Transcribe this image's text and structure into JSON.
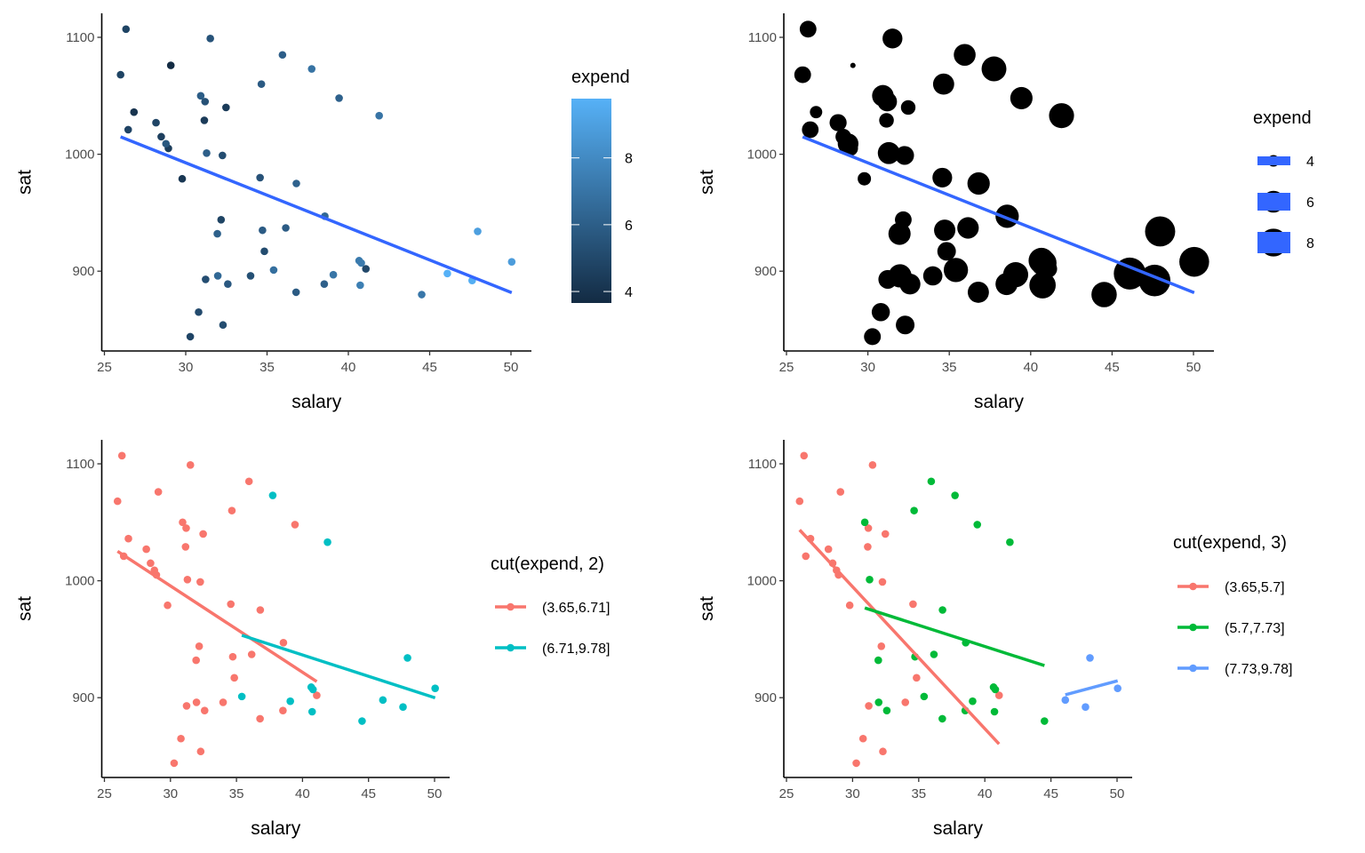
{
  "chart_data": [
    {
      "type": "scatter",
      "xlabel": "salary",
      "ylabel": "sat",
      "xticks": [
        25,
        30,
        35,
        40,
        45,
        50
      ],
      "yticks": [
        900,
        1000,
        1100
      ],
      "color_by": "expend",
      "legend": {
        "title": "expend",
        "type": "colorbar",
        "ticks": [
          4,
          6,
          8
        ],
        "low_color": "#132B43",
        "high_color": "#56B1F7"
      },
      "fit": "linear",
      "fit_color": "#3366FF",
      "legend_placement": "right"
    },
    {
      "type": "scatter",
      "xlabel": "salary",
      "ylabel": "sat",
      "xticks": [
        25,
        30,
        35,
        40,
        45,
        50
      ],
      "yticks": [
        900,
        1000,
        1100
      ],
      "size_by": "expend",
      "legend": {
        "title": "expend",
        "type": "size",
        "ticks": [
          4,
          6,
          8
        ]
      },
      "point_color": "#000000",
      "fit": "linear",
      "fit_color": "#3366FF",
      "legend_placement": "right"
    },
    {
      "type": "scatter",
      "xlabel": "salary",
      "ylabel": "sat",
      "xticks": [
        25,
        30,
        35,
        40,
        45,
        50
      ],
      "yticks": [
        900,
        1000,
        1100
      ],
      "color_by": "cut(expend, 2)",
      "breaks": [
        3.65,
        6.71,
        9.78
      ],
      "legend": {
        "title": "cut(expend, 2)",
        "type": "groups",
        "entries": [
          "(3.65,6.71]",
          "(6.71,9.78]"
        ],
        "colors": [
          "#F8766D",
          "#00BFC4"
        ]
      },
      "fit": "linear per group",
      "legend_placement": "right"
    },
    {
      "type": "scatter",
      "xlabel": "salary",
      "ylabel": "sat",
      "xticks": [
        25,
        30,
        35,
        40,
        45,
        50
      ],
      "yticks": [
        900,
        1000,
        1100
      ],
      "color_by": "cut(expend, 3)",
      "breaks": [
        3.65,
        5.7,
        7.73,
        9.78
      ],
      "legend": {
        "title": "cut(expend, 3)",
        "type": "groups",
        "entries": [
          "(3.65,5.7]",
          "(5.7,7.73]",
          "(7.73,9.78]"
        ],
        "colors": [
          "#F8766D",
          "#00BA38",
          "#619CFF"
        ]
      },
      "fit": "linear per group",
      "legend_placement": "right"
    }
  ],
  "points_columns": [
    "salary",
    "sat",
    "expend"
  ],
  "points": [
    [
      31.144,
      1029,
      4.405
    ],
    [
      47.951,
      934,
      8.963
    ],
    [
      32.175,
      944,
      4.778
    ],
    [
      28.934,
      1005,
      4.459
    ],
    [
      41.078,
      902,
      4.992
    ],
    [
      34.571,
      980,
      5.443
    ],
    [
      50.045,
      908,
      8.817
    ],
    [
      39.076,
      897,
      7.03
    ],
    [
      32.588,
      889,
      5.718
    ],
    [
      32.291,
      854,
      5.193
    ],
    [
      38.518,
      889,
      6.078
    ],
    [
      29.783,
      979,
      4.21
    ],
    [
      39.431,
      1048,
      6.136
    ],
    [
      36.785,
      882,
      5.826
    ],
    [
      31.511,
      1099,
      5.483
    ],
    [
      34.652,
      1060,
      5.817
    ],
    [
      32.257,
      999,
      5.217
    ],
    [
      26.461,
      1021,
      4.761
    ],
    [
      31.972,
      896,
      6.428
    ],
    [
      40.661,
      909,
      7.245
    ],
    [
      40.795,
      907,
      7.287
    ],
    [
      41.895,
      1033,
      6.994
    ],
    [
      35.948,
      1085,
      6.0
    ],
    [
      26.818,
      1036,
      4.08
    ],
    [
      31.189,
      1045,
      5.383
    ],
    [
      28.785,
      1009,
      5.692
    ],
    [
      30.922,
      1050,
      5.935
    ],
    [
      34.836,
      917,
      5.16
    ],
    [
      34.72,
      935,
      5.859
    ],
    [
      46.087,
      898,
      9.774
    ],
    [
      28.493,
      1015,
      4.586
    ],
    [
      47.612,
      892,
      9.623
    ],
    [
      30.793,
      865,
      5.077
    ],
    [
      26.327,
      1107,
      4.775
    ],
    [
      36.802,
      975,
      6.162
    ],
    [
      28.172,
      1027,
      4.845
    ],
    [
      38.555,
      947,
      6.436
    ],
    [
      44.51,
      880,
      7.109
    ],
    [
      40.729,
      888,
      7.469
    ],
    [
      30.279,
      844,
      4.797
    ],
    [
      25.994,
      1068,
      4.775
    ],
    [
      32.477,
      1040,
      4.388
    ],
    [
      31.223,
      893,
      5.222
    ],
    [
      29.082,
      1076,
      3.656
    ],
    [
      35.406,
      901,
      6.75
    ],
    [
      33.987,
      896,
      5.327
    ],
    [
      36.151,
      937,
      5.906
    ],
    [
      31.944,
      932,
      6.107
    ],
    [
      37.746,
      1073,
      6.93
    ],
    [
      31.285,
      1001,
      6.051
    ]
  ]
}
